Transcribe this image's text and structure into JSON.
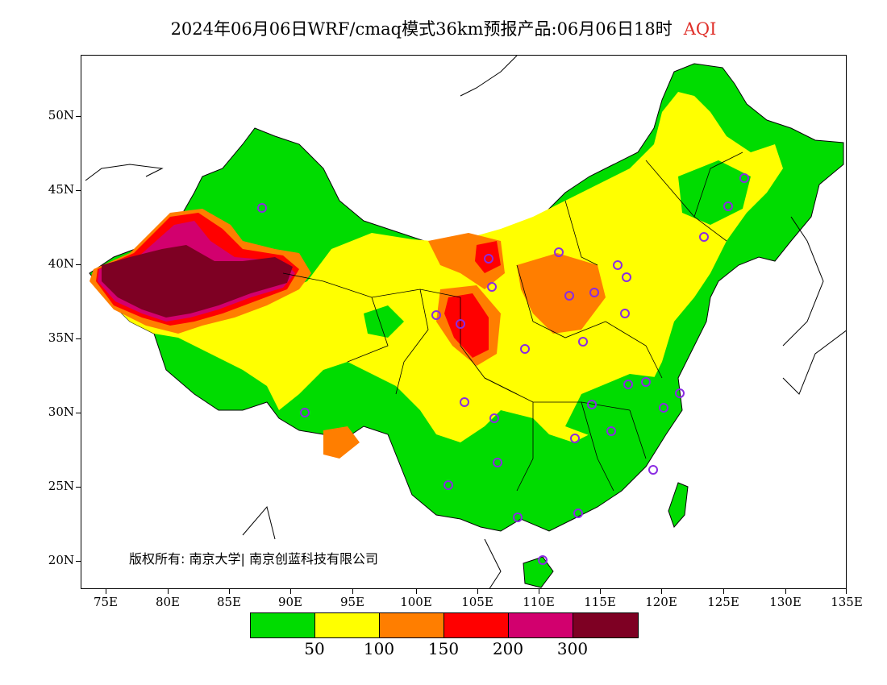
{
  "title": {
    "text": "2024年06月06日WRF/cmaq模式36km预报产品:06月06日18时",
    "variable": "AQI"
  },
  "axes": {
    "lat_labels": [
      "50N",
      "45N",
      "40N",
      "35N",
      "30N",
      "25N",
      "20N"
    ],
    "lon_labels": [
      "75E",
      "80E",
      "85E",
      "90E",
      "95E",
      "100E",
      "105E",
      "110E",
      "115E",
      "120E",
      "125E",
      "130E",
      "135E"
    ]
  },
  "copyright": "版权所有: 南京大学| 南京创蓝科技有限公司",
  "legend": {
    "colors": [
      "#00dc00",
      "#ffff00",
      "#ff7e00",
      "#ff0000",
      "#d2006e",
      "#7e0023"
    ],
    "labels": [
      "50",
      "100",
      "150",
      "200",
      "300"
    ]
  },
  "colors": {
    "water": "#ffffff",
    "station_marker": "#8a2be2"
  }
}
